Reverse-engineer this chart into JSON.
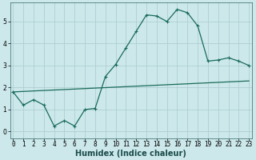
{
  "xlabel": "Humidex (Indice chaleur)",
  "bg_color": "#cce8ea",
  "grid_color": "#b0ced4",
  "line_color": "#1a6b5a",
  "line1_x": [
    0,
    1,
    2,
    3,
    4,
    5,
    6,
    7,
    8,
    9,
    10,
    11,
    12,
    13,
    14,
    15,
    16,
    17,
    18,
    19,
    20,
    21,
    22,
    23
  ],
  "line1_y": [
    1.8,
    1.2,
    1.45,
    1.2,
    0.25,
    0.5,
    0.25,
    1.0,
    1.05,
    2.5,
    3.05,
    3.8,
    4.55,
    5.3,
    5.25,
    5.0,
    5.55,
    5.4,
    4.8,
    3.2,
    3.25,
    3.35,
    3.2,
    3.0
  ],
  "line2_x": [
    0,
    23
  ],
  "line2_y": [
    1.8,
    2.3
  ],
  "xlim": [
    -0.3,
    23.3
  ],
  "ylim": [
    -0.3,
    5.85
  ],
  "xticks": [
    0,
    1,
    2,
    3,
    4,
    5,
    6,
    7,
    8,
    9,
    10,
    11,
    12,
    13,
    14,
    15,
    16,
    17,
    18,
    19,
    20,
    21,
    22,
    23
  ],
  "xtick_labels": [
    "0",
    "1",
    "2",
    "3",
    "4",
    "5",
    "6",
    "7",
    "8",
    "9",
    "10",
    "11",
    "12",
    "13",
    "14",
    "15",
    "16",
    "17",
    "18",
    "19",
    "20",
    "21",
    "22",
    "23"
  ],
  "yticks": [
    0,
    1,
    2,
    3,
    4,
    5
  ],
  "tick_fontsize": 5.5,
  "label_fontsize": 7.0
}
